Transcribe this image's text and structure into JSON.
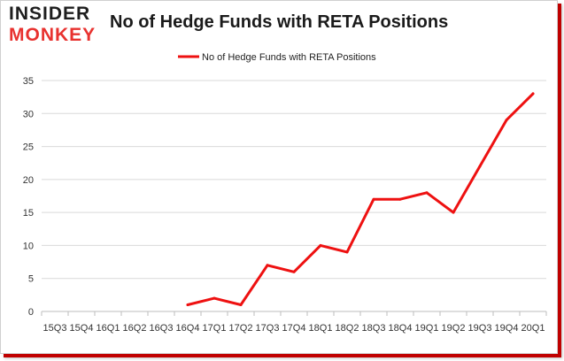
{
  "brand": {
    "line1": "INSIDER",
    "line2": "MONKEY"
  },
  "chart_data": {
    "type": "line",
    "title": "No of Hedge Funds with RETA Positions",
    "xlabel": "",
    "ylabel": "",
    "ylim": [
      0,
      35
    ],
    "yticks": [
      0,
      5,
      10,
      15,
      20,
      25,
      30,
      35
    ],
    "grid": true,
    "legend_position": "top-center",
    "categories": [
      "15Q3",
      "15Q4",
      "16Q1",
      "16Q2",
      "16Q3",
      "16Q4",
      "17Q1",
      "17Q2",
      "17Q3",
      "17Q4",
      "18Q1",
      "18Q2",
      "18Q3",
      "18Q4",
      "19Q1",
      "19Q2",
      "19Q3",
      "19Q4",
      "20Q1"
    ],
    "series": [
      {
        "name": "No of Hedge Funds with RETA Positions",
        "color": "#ee1111",
        "values": [
          null,
          null,
          null,
          null,
          null,
          1,
          2,
          1,
          7,
          6,
          10,
          9,
          17,
          17,
          18,
          15,
          22,
          29,
          33
        ]
      }
    ]
  }
}
